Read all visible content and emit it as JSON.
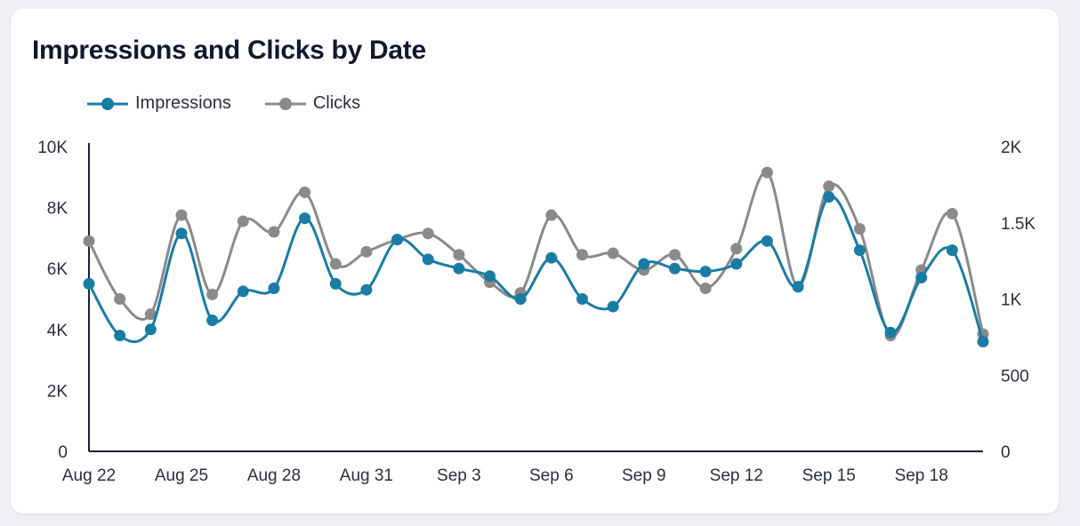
{
  "chart_data": {
    "type": "line",
    "title": "Impressions and Clicks by Date",
    "x": [
      "Aug 22",
      "Aug 23",
      "Aug 24",
      "Aug 25",
      "Aug 26",
      "Aug 27",
      "Aug 28",
      "Aug 29",
      "Aug 30",
      "Aug 31",
      "Sep 1",
      "Sep 2",
      "Sep 3",
      "Sep 4",
      "Sep 5",
      "Sep 6",
      "Sep 7",
      "Sep 8",
      "Sep 9",
      "Sep 10",
      "Sep 11",
      "Sep 12",
      "Sep 13",
      "Sep 14",
      "Sep 15",
      "Sep 16",
      "Sep 17",
      "Sep 18",
      "Sep 19",
      "Sep 20"
    ],
    "x_tick_labels": [
      "Aug 22",
      "Aug 25",
      "Aug 28",
      "Aug 31",
      "Sep 3",
      "Sep 6",
      "Sep 9",
      "Sep 12",
      "Sep 15",
      "Sep 18"
    ],
    "series": [
      {
        "name": "Impressions",
        "axis": "left",
        "color": "#1a7ca3",
        "values": [
          5500,
          3800,
          4000,
          7150,
          4300,
          5250,
          5350,
          7650,
          5500,
          5300,
          6950,
          6300,
          6000,
          5750,
          5000,
          6350,
          5000,
          4750,
          6150,
          6000,
          5900,
          6150,
          6900,
          5400,
          8350,
          6600,
          3900,
          5700,
          6600,
          3600
        ]
      },
      {
        "name": "Clicks",
        "axis": "right",
        "color": "#8a8a8a",
        "values": [
          1380,
          1000,
          900,
          1550,
          1030,
          1510,
          1440,
          1700,
          1230,
          1310,
          1390,
          1430,
          1290,
          1110,
          1040,
          1550,
          1290,
          1300,
          1190,
          1290,
          1070,
          1330,
          1830,
          1080,
          1740,
          1460,
          760,
          1190,
          1560,
          770
        ]
      }
    ],
    "y_left_ticks": [
      "0",
      "2K",
      "4K",
      "6K",
      "8K",
      "10K"
    ],
    "y_right_ticks": [
      "0",
      "500",
      "1K",
      "1.5K",
      "2K"
    ],
    "ylim_left": [
      0,
      10000
    ],
    "ylim_right": [
      0,
      2000
    ],
    "legend_position": "top-left",
    "grid": false
  }
}
